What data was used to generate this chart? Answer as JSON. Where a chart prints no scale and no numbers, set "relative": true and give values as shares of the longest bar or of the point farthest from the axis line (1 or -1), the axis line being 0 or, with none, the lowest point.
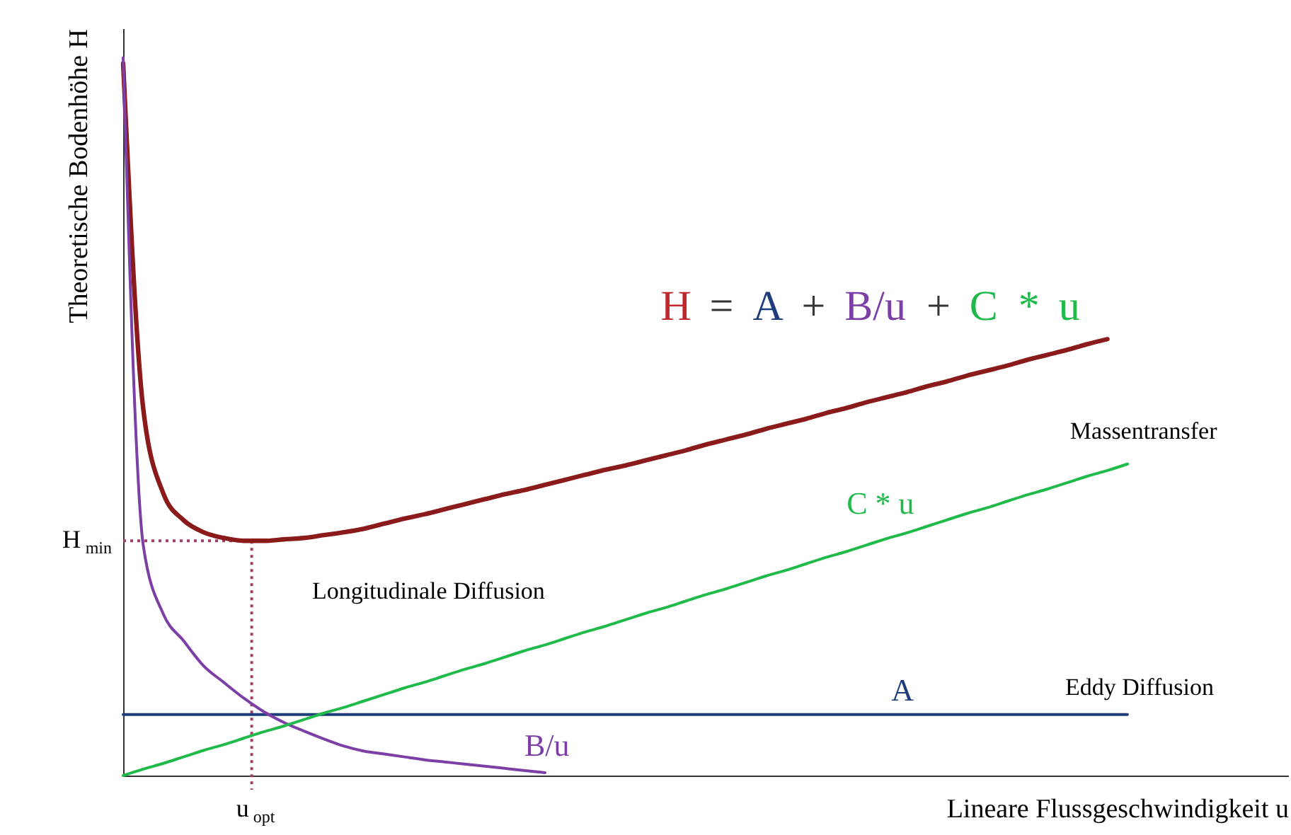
{
  "chart_data": {
    "type": "line",
    "relative": true,
    "xlabel": "Lineare Flussgeschwindigkeit u",
    "ylabel": "Theoretische Bodenhöhe H",
    "categories": [
      null,
      null,
      null,
      null,
      null,
      null,
      null,
      null,
      null,
      null,
      null,
      null,
      null,
      null,
      null,
      null,
      null,
      null,
      null,
      null,
      null,
      null,
      null,
      null,
      null,
      null,
      null,
      null,
      null,
      null,
      null,
      null,
      null,
      null,
      null,
      null,
      null,
      null,
      null,
      null,
      null,
      null,
      null,
      null,
      null,
      null,
      null,
      null,
      null,
      null,
      null
    ],
    "series": [
      {
        "color": "#8b1a1a",
        "values": [
          0.992,
          0.511,
          0.393,
          0.356,
          0.339,
          0.331,
          0.327,
          0.327,
          0.329,
          0.331,
          0.335,
          0.339,
          0.344,
          0.351,
          0.358,
          0.364,
          0.371,
          0.378,
          0.385,
          0.392,
          0.398,
          0.405,
          0.412,
          0.419,
          0.426,
          0.432,
          0.439,
          0.446,
          0.453,
          0.461,
          0.468,
          0.475,
          0.483,
          0.49,
          0.497,
          0.505,
          0.512,
          0.52,
          0.527,
          0.534,
          0.542,
          0.549,
          0.557,
          0.564,
          0.571,
          0.579,
          0.586,
          0.593,
          0.601,
          0.608,
          null
        ]
      },
      {
        "name": "A",
        "color": "#1f3d7a",
        "values": [
          0.085,
          0.085,
          0.085,
          0.085,
          0.085,
          0.085,
          0.085,
          0.085,
          0.085,
          0.085,
          0.085,
          0.085,
          0.085,
          0.085,
          0.085,
          0.085,
          0.085,
          0.085,
          0.085,
          0.085,
          0.085,
          0.085,
          0.085,
          0.085,
          0.085,
          0.085,
          0.085,
          0.085,
          0.085,
          0.085,
          0.085,
          0.085,
          0.085,
          0.085,
          0.085,
          0.085,
          0.085,
          0.085,
          0.085,
          0.085,
          0.085,
          0.085,
          0.085,
          0.085,
          0.085,
          0.085,
          0.085,
          0.085,
          0.085,
          0.085,
          0.085
        ]
      },
      {
        "name": "B/u",
        "color": "#7b3fa5",
        "values": [
          1.0,
          0.321,
          0.225,
          0.188,
          0.153,
          0.13,
          0.108,
          0.089,
          0.074,
          0.062,
          0.051,
          0.041,
          0.034,
          0.03,
          0.026,
          0.022,
          0.019,
          0.016,
          0.013,
          0.01,
          0.007,
          0.004,
          null,
          null,
          null,
          null,
          null,
          null,
          null,
          null,
          null,
          null,
          null,
          null,
          null,
          null,
          null,
          null,
          null,
          null,
          null,
          null,
          null,
          null,
          null,
          null,
          null,
          null,
          null,
          null,
          null
        ]
      },
      {
        "name": "C * u",
        "color": "#1fba4a",
        "values": [
          0,
          0.009,
          0.017,
          0.026,
          0.035,
          0.043,
          0.052,
          0.061,
          0.069,
          0.078,
          0.087,
          0.095,
          0.104,
          0.113,
          0.122,
          0.13,
          0.139,
          0.148,
          0.156,
          0.165,
          0.174,
          0.182,
          0.191,
          0.2,
          0.208,
          0.217,
          0.226,
          0.234,
          0.243,
          0.252,
          0.26,
          0.269,
          0.278,
          0.286,
          0.295,
          0.304,
          0.312,
          0.321,
          0.33,
          0.338,
          0.347,
          0.356,
          0.365,
          0.373,
          0.382,
          0.391,
          0.399,
          0.408,
          0.417,
          0.425,
          0.434
        ]
      }
    ],
    "annotations": [
      "H = A + B/u + C * u",
      "H$_{min}$",
      "Longitudinale Diffusion",
      "Massentransfer",
      "Eddy Diffusion",
      "u$_{opt}$"
    ]
  }
}
